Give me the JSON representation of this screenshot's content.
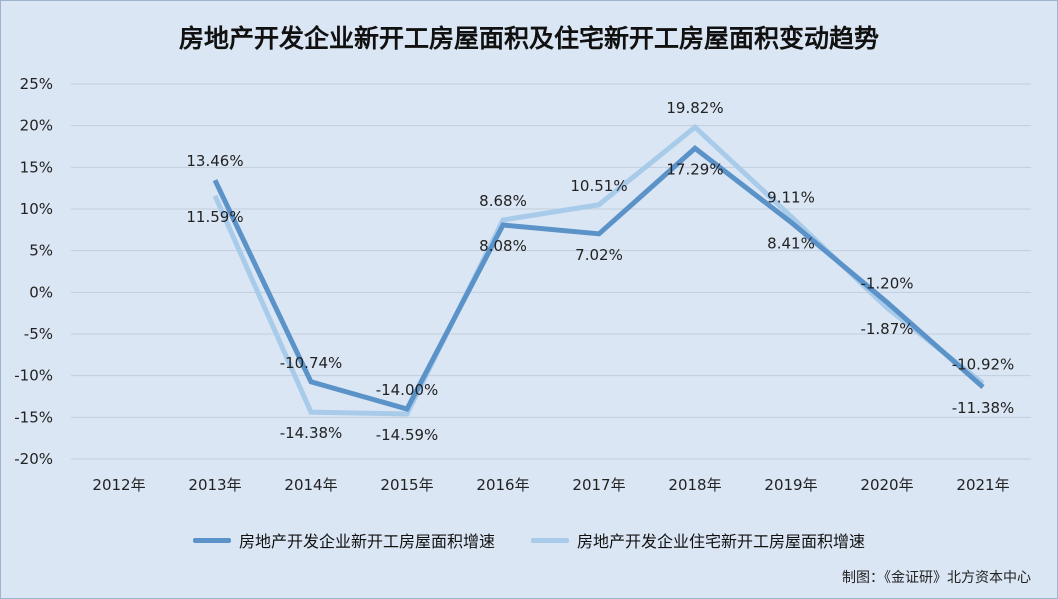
{
  "chart_data": {
    "type": "line",
    "title": "房地产开发企业新开工房屋面积及住宅新开工房屋面积变动趋势",
    "categories": [
      "2012年",
      "2013年",
      "2014年",
      "2015年",
      "2016年",
      "2017年",
      "2018年",
      "2019年",
      "2020年",
      "2021年"
    ],
    "yticks": [
      "25%",
      "20%",
      "15%",
      "10%",
      "5%",
      "0%",
      "-5%",
      "-10%",
      "-15%",
      "-20%"
    ],
    "ylim": [
      -20,
      25
    ],
    "grid": true,
    "legend_position": "bottom",
    "series": [
      {
        "name": "房地产开发企业新开工房屋面积增速",
        "color": "#5b93c9",
        "values": [
          null,
          13.46,
          -10.74,
          -14.0,
          8.08,
          7.02,
          17.29,
          8.41,
          -1.2,
          -11.38
        ],
        "labels": [
          "",
          "13.46%",
          "-10.74%",
          "-14.00%",
          "8.08%",
          "7.02%",
          "17.29%",
          "8.41%",
          "-1.20%",
          "-11.38%"
        ]
      },
      {
        "name": "房地产开发企业住宅新开工房屋面积增速",
        "color": "#a9cbea",
        "values": [
          null,
          11.59,
          -14.38,
          -14.59,
          8.68,
          10.51,
          19.82,
          9.11,
          -1.87,
          -10.92
        ],
        "labels": [
          "",
          "11.59%",
          "-14.38%",
          "-14.59%",
          "8.68%",
          "10.51%",
          "19.82%",
          "9.11%",
          "-1.87%",
          "-10.92%"
        ]
      }
    ]
  },
  "source_note": "制图：《金证研》北方资本中心"
}
